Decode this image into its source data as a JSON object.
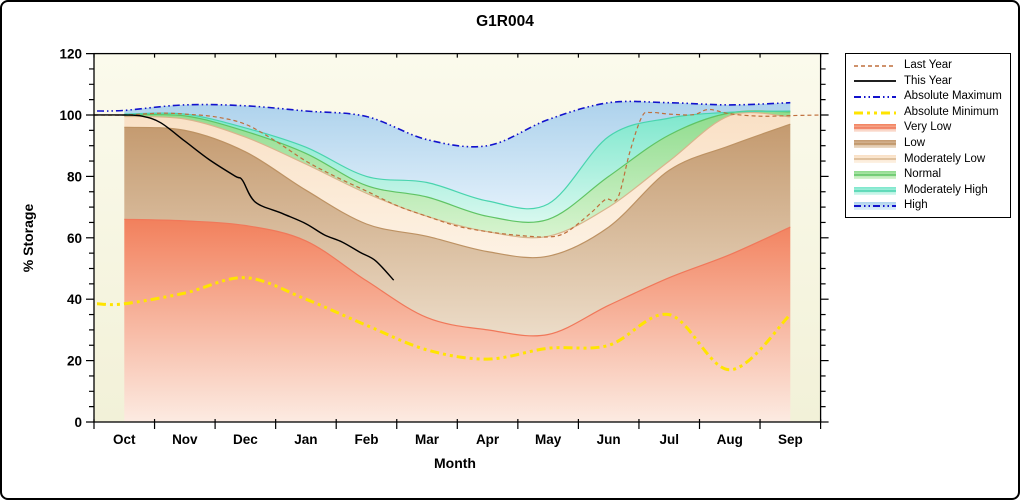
{
  "chart_data": {
    "type": "area",
    "title": "G1R004",
    "xlabel": "Month",
    "ylabel": "% Storage",
    "ylim": [
      0,
      120
    ],
    "ytick_major": 20,
    "ytick_minor": 5,
    "grid": false,
    "legend_position": "right",
    "plot_bg_top": "#fbfaec",
    "plot_bg_bottom": "#f2f1d8",
    "months": [
      "Oct",
      "Nov",
      "Dec",
      "Jan",
      "Feb",
      "Mar",
      "Apr",
      "May",
      "Jun",
      "Jul",
      "Aug",
      "Sep"
    ],
    "bands": [
      {
        "label": "Very Low",
        "top_color": "#f2805c",
        "bottom_color": "#fcebe2",
        "edge_color": "#f0785a",
        "values": [
          66,
          65.5,
          64,
          59,
          46,
          34,
          30,
          28.5,
          38,
          47,
          54.5,
          63.5
        ]
      },
      {
        "label": "Low",
        "top_color": "#c49a6f",
        "bottom_color": "#ecdcc8",
        "edge_color": "#bd9263",
        "values": [
          96,
          95,
          88,
          75.5,
          64.5,
          60.5,
          55.5,
          54,
          63.5,
          82,
          90,
          97
        ]
      },
      {
        "label": "Moderately Low",
        "top_color": "#f9e0c5",
        "bottom_color": "#fdf2e4",
        "edge_color": "#d8b58d",
        "values": [
          99.5,
          98.7,
          92.8,
          84,
          74.5,
          67,
          62,
          60.5,
          70,
          85,
          99.8,
          99.4
        ]
      },
      {
        "label": "Normal",
        "top_color": "#8fdc8d",
        "bottom_color": "#d8f4d0",
        "edge_color": "#5fc464",
        "values": [
          100,
          99.7,
          94.7,
          87.5,
          77,
          73.3,
          67,
          66,
          80,
          93.5,
          100.7,
          101
        ]
      },
      {
        "label": "Moderately High",
        "top_color": "#7ce7cc",
        "bottom_color": "#d8f8ef",
        "edge_color": "#49d4ae",
        "values": [
          100.3,
          100.3,
          95.8,
          89.5,
          80,
          78,
          72,
          71,
          93,
          99,
          100.9,
          101.3
        ]
      },
      {
        "label": "High",
        "top_color": "#add2ec",
        "bottom_color": "#e0effa",
        "edge_color": "#9cc4e0",
        "values": [
          101.5,
          103.3,
          103,
          101.3,
          99.5,
          92,
          90,
          98.5,
          104,
          104,
          103.3,
          104
        ]
      }
    ],
    "lines": [
      {
        "label": "Last Year",
        "color": "#bf6f3c",
        "width": 1.2,
        "dash": "4 3",
        "points": [
          [
            -0.5,
            100
          ],
          [
            0,
            100
          ],
          [
            0.6,
            100.6
          ],
          [
            1,
            100.3
          ],
          [
            1.5,
            99.4
          ],
          [
            2,
            97
          ],
          [
            2.5,
            91.5
          ],
          [
            3,
            85
          ],
          [
            3.5,
            79.8
          ],
          [
            4,
            75.2
          ],
          [
            4.5,
            70.5
          ],
          [
            5,
            67
          ],
          [
            5.5,
            63.8
          ],
          [
            6,
            62
          ],
          [
            6.5,
            60.8
          ],
          [
            7,
            60.3
          ],
          [
            7.3,
            61.8
          ],
          [
            7.7,
            68
          ],
          [
            7.95,
            72.5
          ],
          [
            8.15,
            73
          ],
          [
            8.35,
            88
          ],
          [
            8.55,
            99.5
          ],
          [
            8.7,
            100.8
          ],
          [
            9,
            100.3
          ],
          [
            9.4,
            100.1
          ],
          [
            9.65,
            101.8
          ],
          [
            10,
            100.4
          ],
          [
            10.5,
            99.6
          ],
          [
            11,
            99.8
          ],
          [
            11.5,
            100
          ]
        ]
      },
      {
        "label": "This Year",
        "color": "#000000",
        "width": 1.4,
        "dash": "",
        "points": [
          [
            -0.5,
            100
          ],
          [
            0,
            100
          ],
          [
            0.3,
            99.6
          ],
          [
            0.6,
            97.5
          ],
          [
            1,
            91.5
          ],
          [
            1.4,
            85.5
          ],
          [
            1.83,
            80.1
          ],
          [
            1.95,
            78.8
          ],
          [
            2.16,
            71.7
          ],
          [
            2.6,
            68
          ],
          [
            3,
            64.6
          ],
          [
            3.3,
            61
          ],
          [
            3.6,
            58.6
          ],
          [
            3.9,
            55.2
          ],
          [
            4.15,
            52.5
          ],
          [
            4.45,
            46.2
          ]
        ]
      },
      {
        "label": "Absolute Maximum",
        "color": "#1212cc",
        "width": 1.6,
        "dash": "7 3 1.5 3 1.5 3",
        "points": [
          [
            -0.45,
            101.3
          ],
          [
            0,
            101.5
          ],
          [
            1,
            103.3
          ],
          [
            2,
            103
          ],
          [
            3,
            101.3
          ],
          [
            4,
            99.5
          ],
          [
            5,
            92
          ],
          [
            6,
            90
          ],
          [
            7,
            98.5
          ],
          [
            8,
            104
          ],
          [
            9,
            104
          ],
          [
            10,
            103.3
          ],
          [
            11,
            104
          ]
        ]
      },
      {
        "label": "Absolute Minimum",
        "color": "#ffe400",
        "width": 3,
        "dash": "9 4 3 4 3 4",
        "points": [
          [
            -0.45,
            38.5
          ],
          [
            0,
            38.5
          ],
          [
            1,
            42
          ],
          [
            2,
            47
          ],
          [
            3,
            40
          ],
          [
            4,
            31.5
          ],
          [
            5,
            23.5
          ],
          [
            6,
            20.5
          ],
          [
            7,
            24
          ],
          [
            8,
            25
          ],
          [
            9,
            35
          ],
          [
            10,
            17
          ],
          [
            11,
            35
          ]
        ]
      }
    ],
    "legend": [
      {
        "label": "Last Year",
        "kind": "line",
        "line_ref": 0
      },
      {
        "label": "This Year",
        "kind": "line",
        "line_ref": 1
      },
      {
        "label": "Absolute Maximum",
        "kind": "line",
        "line_ref": 2
      },
      {
        "label": "Absolute Minimum",
        "kind": "line",
        "line_ref": 3
      },
      {
        "label": "Very Low",
        "kind": "band",
        "band_ref": 0
      },
      {
        "label": "Low",
        "kind": "band",
        "band_ref": 1
      },
      {
        "label": "Moderately Low",
        "kind": "band",
        "band_ref": 2
      },
      {
        "label": "Normal",
        "kind": "band",
        "band_ref": 3
      },
      {
        "label": "Moderately High",
        "kind": "band",
        "band_ref": 4
      },
      {
        "label": "High",
        "kind": "band-line",
        "band_ref": 5,
        "line_ref": 2
      }
    ]
  }
}
